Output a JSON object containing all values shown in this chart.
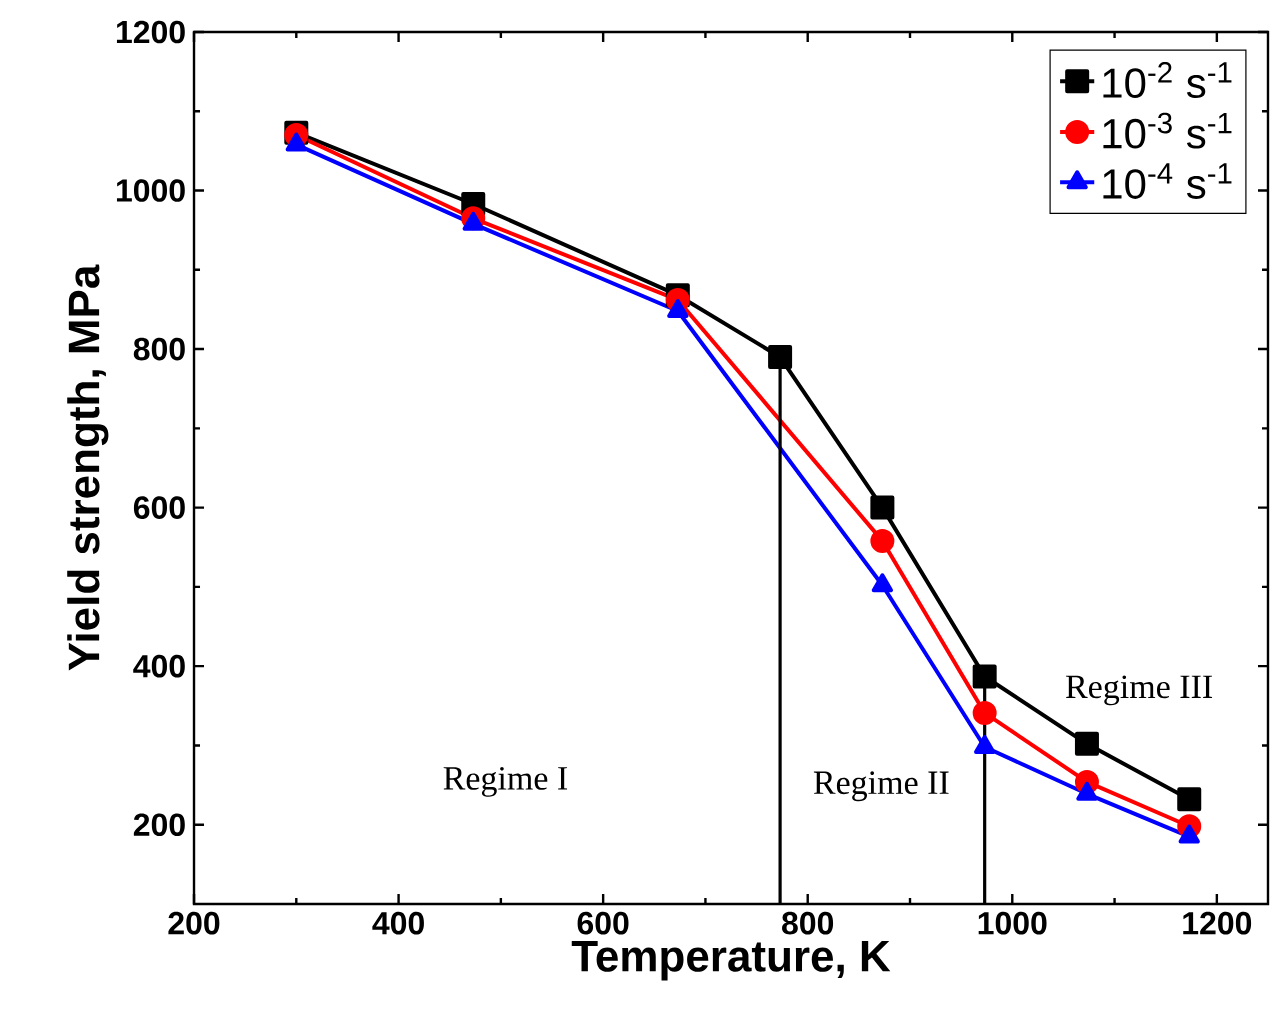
{
  "chart_data": {
    "type": "line",
    "xlabel": "Temperature, K",
    "ylabel": "Yield strength, MPa",
    "xlim": [
      200,
      1250
    ],
    "ylim": [
      100,
      1200
    ],
    "xticks": [
      200,
      400,
      600,
      800,
      1000,
      1200
    ],
    "yticks": [
      200,
      400,
      600,
      800,
      1000,
      1200
    ],
    "series": [
      {
        "name": "10$^{-2}$ s$^{-1}$",
        "color": "#000000",
        "marker": "square",
        "x": [
          300,
          473,
          673,
          773,
          873,
          973,
          1073,
          1173
        ],
        "values": [
          1073,
          983,
          868,
          790,
          600,
          387,
          302,
          232
        ]
      },
      {
        "name": "10$^{-3}$ s$^{-1}$",
        "color": "#ff0000",
        "marker": "circle",
        "x": [
          300,
          473,
          673,
          873,
          973,
          1073,
          1173
        ],
        "values": [
          1070,
          965,
          862,
          558,
          341,
          254,
          198
        ]
      },
      {
        "name": "10$^{-4}$ s$^{-1}$",
        "color": "#0000ff",
        "marker": "triangle",
        "x": [
          300,
          473,
          673,
          873,
          973,
          1073,
          1173
        ],
        "values": [
          1058,
          958,
          848,
          502,
          298,
          239,
          185
        ]
      }
    ],
    "ref_lines": [
      {
        "axis": "x",
        "value": 773,
        "color": "#000000"
      },
      {
        "axis": "x",
        "value": 973,
        "color": "#000000"
      }
    ],
    "annotations": [
      "Regime I",
      "Regime II",
      "Regime III"
    ],
    "legend": "top right",
    "grid": false
  }
}
